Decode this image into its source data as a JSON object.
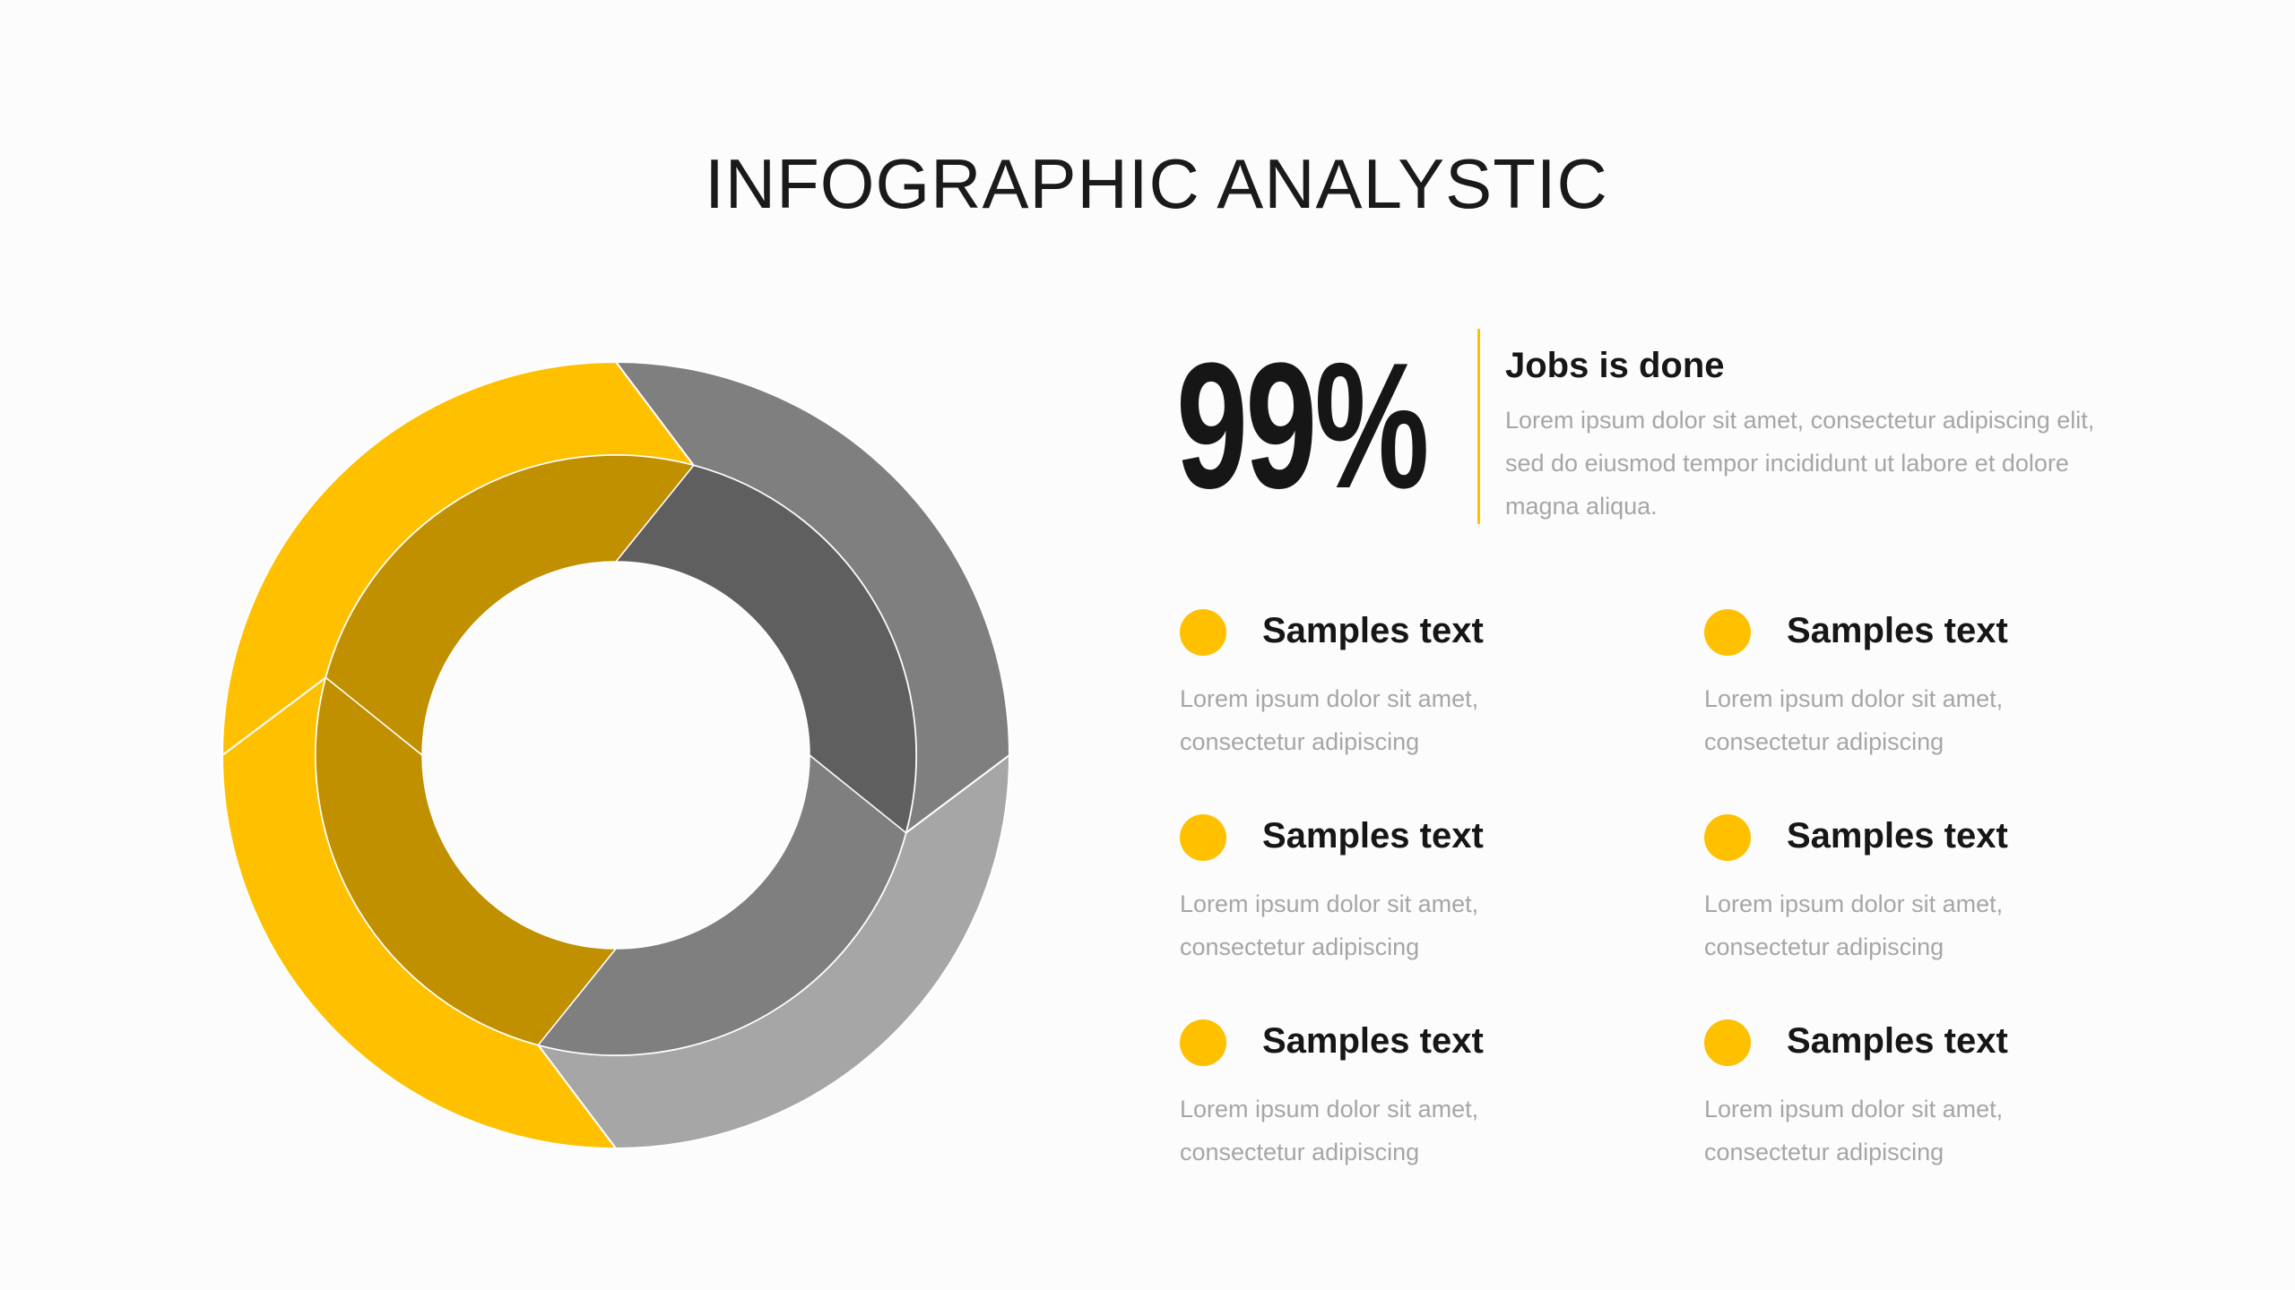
{
  "title": "INFOGRAPHIC ANALYSTIC",
  "stat": {
    "value": "99%",
    "heading": "Jobs is done",
    "text": "Lorem ipsum dolor sit amet, consectetur adipiscing elit, sed do eiusmod tempor incididunt ut labore et dolore magna aliqua.",
    "accent": "#ffc000"
  },
  "items": [
    {
      "title": "Samples text",
      "text": "Lorem ipsum dolor sit amet, consectetur adipiscing"
    },
    {
      "title": "Samples text",
      "text": "Lorem ipsum dolor sit amet, consectetur adipiscing"
    },
    {
      "title": "Samples text",
      "text": "Lorem ipsum dolor sit amet, consectetur adipiscing"
    },
    {
      "title": "Samples text",
      "text": "Lorem ipsum dolor sit amet, consectetur adipiscing"
    },
    {
      "title": "Samples text",
      "text": "Lorem ipsum dolor sit amet, consectetur adipiscing"
    },
    {
      "title": "Samples text",
      "text": "Lorem ipsum dolor sit amet, consectetur adipiscing"
    }
  ],
  "chart_data": {
    "type": "pie",
    "variant": "two-ring donut",
    "rings": [
      {
        "ring": "outer",
        "values": [
          25,
          25,
          25,
          25
        ],
        "colors": [
          "#7f7f7f",
          "#a6a6a6",
          "#ffc000",
          "#ffc000"
        ]
      },
      {
        "ring": "inner",
        "values": [
          25,
          25,
          25,
          25
        ],
        "colors": [
          "#5f5f5f",
          "#7f7f7f",
          "#c09000",
          "#c09000"
        ]
      }
    ]
  }
}
